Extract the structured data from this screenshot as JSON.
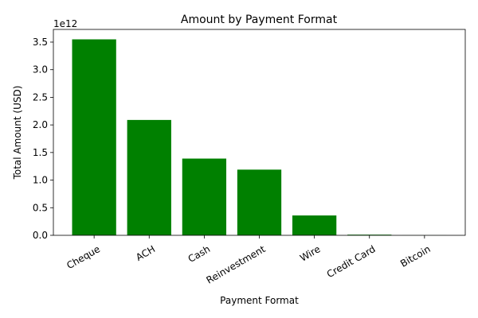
{
  "chart_data": {
    "type": "bar",
    "title": "Amount by Payment Format",
    "xlabel": "Payment Format",
    "ylabel": "Total Amount (USD)",
    "y_offset_label": "1e12",
    "categories": [
      "Cheque",
      "ACH",
      "Cash",
      "Reinvestment",
      "Wire",
      "Credit Card",
      "Bitcoin"
    ],
    "values": [
      3550000000000.0,
      2090000000000.0,
      1390000000000.0,
      1190000000000.0,
      360000000000.0,
      12000000000.0,
      1000000000.0
    ],
    "ylim": [
      0,
      3730000000000.0
    ],
    "yticks": [
      0,
      500000000000.0,
      1000000000000.0,
      1500000000000.0,
      2000000000000.0,
      2500000000000.0,
      3000000000000.0,
      3500000000000.0
    ],
    "ytick_labels": [
      "0.0",
      "0.5",
      "1.0",
      "1.5",
      "2.0",
      "2.5",
      "3.0",
      "3.5"
    ],
    "bar_color": "#008000",
    "grid": false,
    "legend": "none",
    "x_tick_rotation_deg": 30
  }
}
